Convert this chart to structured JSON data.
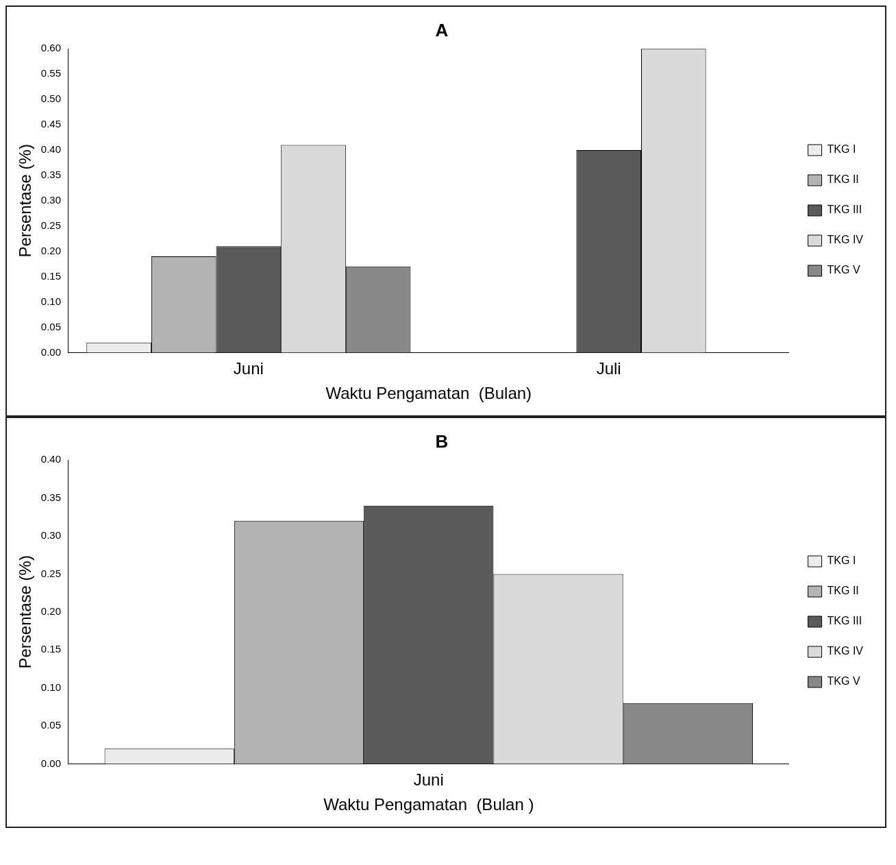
{
  "chart_data": [
    {
      "type": "bar",
      "title": "A",
      "categories": [
        "Juni",
        "Juli"
      ],
      "xlabel": "Waktu Pengamatan  (Bulan)",
      "ylabel": "Persentase (%)",
      "series": [
        {
          "name": "TKG I",
          "color": "#ececec",
          "values": [
            0.02,
            0
          ]
        },
        {
          "name": "TKG II",
          "color": "#b3b3b3",
          "values": [
            0.19,
            0
          ]
        },
        {
          "name": "TKG III",
          "color": "#5a5a5a",
          "values": [
            0.21,
            0.4
          ]
        },
        {
          "name": "TKG IV",
          "color": "#dadada",
          "values": [
            0.41,
            0.6
          ]
        },
        {
          "name": "TKG V",
          "color": "#888888",
          "values": [
            0.17,
            0
          ]
        }
      ],
      "ylim": [
        0,
        0.6
      ],
      "yticks": [
        {
          "value": 0,
          "label": "0.00"
        },
        {
          "value": 0.05,
          "label": "0.05"
        },
        {
          "value": 0.1,
          "label": "0.10"
        },
        {
          "value": 0.15,
          "label": "0.15"
        },
        {
          "value": 0.2,
          "label": "0.20"
        },
        {
          "value": 0.25,
          "label": "0.25"
        },
        {
          "value": 0.3,
          "label": "0.30"
        },
        {
          "value": 0.35,
          "label": "0.35"
        },
        {
          "value": 0.4,
          "label": "0.40"
        },
        {
          "value": 0.45,
          "label": "0.45"
        },
        {
          "value": 0.5,
          "label": "0.50"
        },
        {
          "value": 0.55,
          "label": "0.55"
        },
        {
          "value": 0.6,
          "label": "0.60"
        }
      ],
      "legend": "right"
    },
    {
      "type": "bar",
      "title": "B",
      "categories": [
        "Juni"
      ],
      "xlabel": "Waktu Pengamatan  (Bulan )",
      "ylabel": "Persentase (%)",
      "series": [
        {
          "name": "TKG I",
          "color": "#ececec",
          "values": [
            0.02
          ]
        },
        {
          "name": "TKG II",
          "color": "#b3b3b3",
          "values": [
            0.32
          ]
        },
        {
          "name": "TKG III",
          "color": "#5a5a5a",
          "values": [
            0.34
          ]
        },
        {
          "name": "TKG IV",
          "color": "#dadada",
          "values": [
            0.25
          ]
        },
        {
          "name": "TKG V",
          "color": "#888888",
          "values": [
            0.08
          ]
        }
      ],
      "ylim": [
        0,
        0.4
      ],
      "yticks": [
        {
          "value": 0,
          "label": "0.00"
        },
        {
          "value": 0.05,
          "label": "0.05"
        },
        {
          "value": 0.1,
          "label": "0.10"
        },
        {
          "value": 0.15,
          "label": "0.15"
        },
        {
          "value": 0.2,
          "label": "0.20"
        },
        {
          "value": 0.25,
          "label": "0.25"
        },
        {
          "value": 0.3,
          "label": "0.30"
        },
        {
          "value": 0.35,
          "label": "0.35"
        },
        {
          "value": 0.4,
          "label": "0.40"
        }
      ],
      "legend": "right"
    }
  ]
}
